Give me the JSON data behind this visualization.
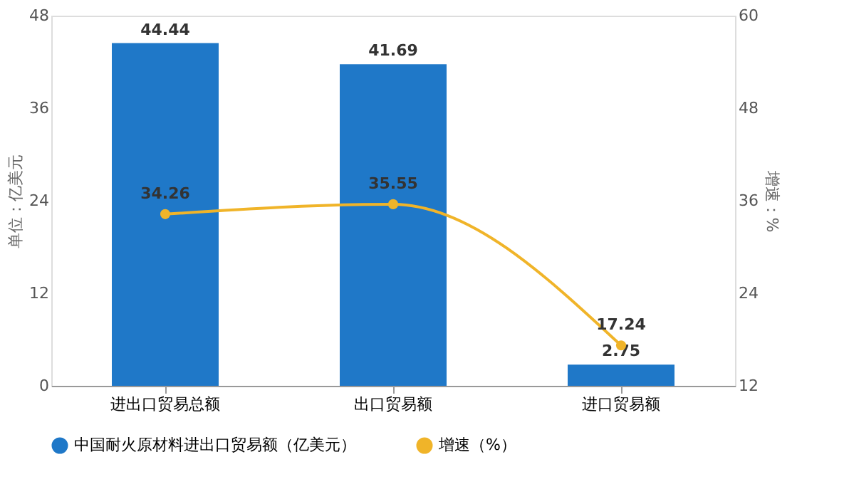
{
  "chart_data": {
    "type": "bar",
    "categories": [
      "进出口贸易总额",
      "出口贸易额",
      "进口贸易额"
    ],
    "series": [
      {
        "name": "中国耐火原材料进出口贸易额（亿美元）",
        "color": "#1f78c8",
        "values": [
          44.44,
          41.69,
          2.75
        ]
      },
      {
        "name": "增速（%）",
        "type": "line",
        "axis": "y2",
        "color": "#f0b429",
        "values": [
          34.26,
          35.55,
          17.24
        ]
      }
    ],
    "ylabel": "单位：亿美元",
    "y2label": "增速：%",
    "ylim": [
      0,
      48
    ],
    "yticks": [
      0,
      12,
      24,
      36,
      48
    ],
    "y2lim": [
      12,
      60
    ],
    "y2ticks": [
      12,
      24,
      36,
      48,
      60
    ],
    "data_labels": true,
    "legend": "bottom",
    "marker": "circle",
    "grid": false
  }
}
